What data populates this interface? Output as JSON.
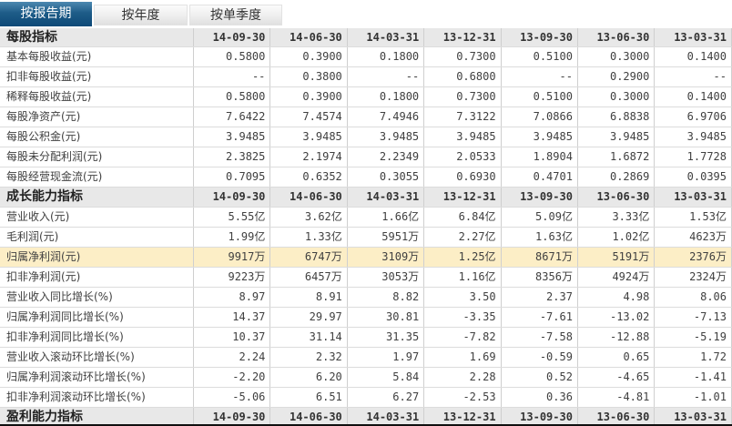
{
  "tabs": [
    {
      "label": "按报告期",
      "selected": true
    },
    {
      "label": "按年度",
      "selected": false
    },
    {
      "label": "按单季度",
      "selected": false
    }
  ],
  "table": {
    "date_columns": [
      "14-09-30",
      "14-06-30",
      "14-03-31",
      "13-12-31",
      "13-09-30",
      "13-06-30",
      "13-03-31"
    ],
    "sections": [
      {
        "title": "每股指标",
        "rows": [
          {
            "label": "基本每股收益(元)",
            "values": [
              "0.5800",
              "0.3900",
              "0.1800",
              "0.7300",
              "0.5100",
              "0.3000",
              "0.1400"
            ],
            "highlight": false
          },
          {
            "label": "扣非每股收益(元)",
            "values": [
              "--",
              "0.3800",
              "--",
              "0.6800",
              "--",
              "0.2900",
              "--"
            ],
            "highlight": false
          },
          {
            "label": "稀释每股收益(元)",
            "values": [
              "0.5800",
              "0.3900",
              "0.1800",
              "0.7300",
              "0.5100",
              "0.3000",
              "0.1400"
            ],
            "highlight": false
          },
          {
            "label": "每股净资产(元)",
            "values": [
              "7.6422",
              "7.4574",
              "7.4946",
              "7.3122",
              "7.0866",
              "6.8838",
              "6.9706"
            ],
            "highlight": false
          },
          {
            "label": "每股公积金(元)",
            "values": [
              "3.9485",
              "3.9485",
              "3.9485",
              "3.9485",
              "3.9485",
              "3.9485",
              "3.9485"
            ],
            "highlight": false
          },
          {
            "label": "每股未分配利润(元)",
            "values": [
              "2.3825",
              "2.1974",
              "2.2349",
              "2.0533",
              "1.8904",
              "1.6872",
              "1.7728"
            ],
            "highlight": false
          },
          {
            "label": "每股经营现金流(元)",
            "values": [
              "0.7095",
              "0.6352",
              "0.3055",
              "0.6930",
              "0.4701",
              "0.2869",
              "0.0395"
            ],
            "highlight": false
          }
        ]
      },
      {
        "title": "成长能力指标",
        "rows": [
          {
            "label": "营业收入(元)",
            "values": [
              "5.55亿",
              "3.62亿",
              "1.66亿",
              "6.84亿",
              "5.09亿",
              "3.33亿",
              "1.53亿"
            ],
            "highlight": false
          },
          {
            "label": "毛利润(元)",
            "values": [
              "1.99亿",
              "1.33亿",
              "5951万",
              "2.27亿",
              "1.63亿",
              "1.02亿",
              "4623万"
            ],
            "highlight": false
          },
          {
            "label": "归属净利润(元)",
            "values": [
              "9917万",
              "6747万",
              "3109万",
              "1.25亿",
              "8671万",
              "5191万",
              "2376万"
            ],
            "highlight": true
          },
          {
            "label": "扣非净利润(元)",
            "values": [
              "9223万",
              "6457万",
              "3053万",
              "1.16亿",
              "8356万",
              "4924万",
              "2324万"
            ],
            "highlight": false
          },
          {
            "label": "营业收入同比增长(%)",
            "values": [
              "8.97",
              "8.91",
              "8.82",
              "3.50",
              "2.37",
              "4.98",
              "8.06"
            ],
            "highlight": false
          },
          {
            "label": "归属净利润同比增长(%)",
            "values": [
              "14.37",
              "29.97",
              "30.81",
              "-3.35",
              "-7.61",
              "-13.02",
              "-7.13"
            ],
            "highlight": false
          },
          {
            "label": "扣非净利润同比增长(%)",
            "values": [
              "10.37",
              "31.14",
              "31.35",
              "-7.82",
              "-7.58",
              "-12.88",
              "-5.19"
            ],
            "highlight": false
          },
          {
            "label": "营业收入滚动环比增长(%)",
            "values": [
              "2.24",
              "2.32",
              "1.97",
              "1.69",
              "-0.59",
              "0.65",
              "1.72"
            ],
            "highlight": false
          },
          {
            "label": "归属净利润滚动环比增长(%)",
            "values": [
              "-2.20",
              "6.20",
              "5.84",
              "2.28",
              "0.52",
              "-4.65",
              "-1.41"
            ],
            "highlight": false
          },
          {
            "label": "扣非净利润滚动环比增长(%)",
            "values": [
              "-5.06",
              "6.51",
              "6.27",
              "-2.53",
              "0.36",
              "-4.81",
              "-1.01"
            ],
            "highlight": false
          }
        ]
      },
      {
        "title": "盈利能力指标",
        "rows": []
      }
    ]
  },
  "colors": {
    "tab_active_top": "#4c88b0",
    "tab_active_bottom": "#0d4977",
    "highlight_row": "#fceec6",
    "section_header_bg": "#e8e8e8"
  }
}
